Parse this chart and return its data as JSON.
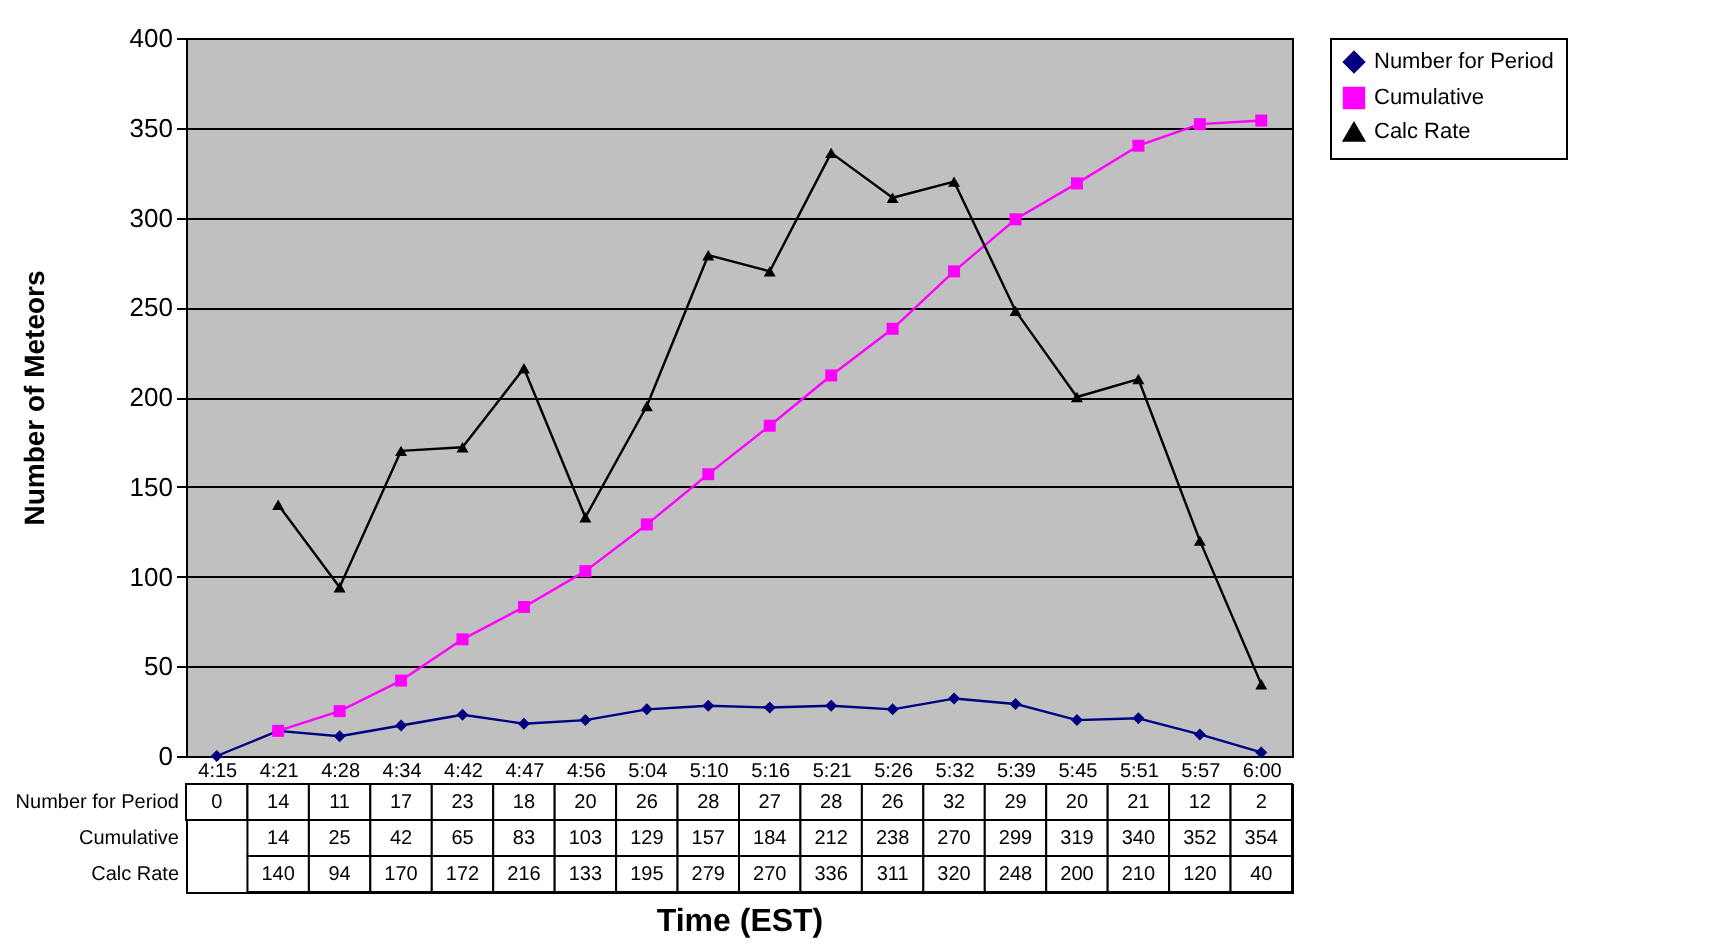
{
  "chart_data": {
    "type": "line",
    "xlabel": "Time (EST)",
    "ylabel": "Number of Meteors",
    "categories": [
      "4:15",
      "4:21",
      "4:28",
      "4:34",
      "4:42",
      "4:47",
      "4:56",
      "5:04",
      "5:10",
      "5:16",
      "5:21",
      "5:26",
      "5:32",
      "5:39",
      "5:45",
      "5:51",
      "5:57",
      "6:00"
    ],
    "series": [
      {
        "name": "Number for Period",
        "color": "#000080",
        "marker": "diamond",
        "values": [
          0,
          14,
          11,
          17,
          23,
          18,
          20,
          26,
          28,
          27,
          28,
          26,
          32,
          29,
          20,
          21,
          12,
          2
        ]
      },
      {
        "name": "Cumulative",
        "color": "#ff00ff",
        "marker": "square",
        "values": [
          null,
          14,
          25,
          42,
          65,
          83,
          103,
          129,
          157,
          184,
          212,
          238,
          270,
          299,
          319,
          340,
          352,
          354
        ]
      },
      {
        "name": "Calc Rate",
        "color": "#000000",
        "marker": "triangle",
        "values": [
          null,
          140,
          94,
          170,
          172,
          216,
          133,
          195,
          279,
          270,
          336,
          311,
          320,
          248,
          200,
          210,
          120,
          40
        ]
      }
    ],
    "ylim": [
      0,
      400
    ],
    "yticks": [
      0,
      50,
      100,
      150,
      200,
      250,
      300,
      350,
      400
    ],
    "grid": "y",
    "legend": "right",
    "data_labels": true,
    "line_style": "solid"
  }
}
